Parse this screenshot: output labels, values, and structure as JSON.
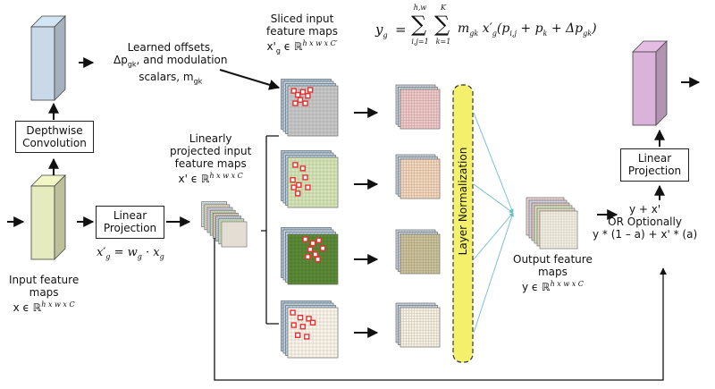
{
  "offsets_label": {
    "line1": "Learned offsets,",
    "line2_prefix": "Δp",
    "line2_sub": "gk",
    "line2_suffix": ", and modulation",
    "line3_prefix": "scalars, m",
    "line3_sub": "gk"
  },
  "depthwise_conv": {
    "line1": "Depthwise",
    "line2": "Convolution"
  },
  "linear_projection_left": {
    "line1": "Linear",
    "line2": "Projection"
  },
  "linear_projection_right": {
    "line1": "Linear",
    "line2": "Projection"
  },
  "projection_formula": {
    "lhs": "x′",
    "lhs_sub": "g",
    "rhs": "= w",
    "rhs_sub": "g",
    "rhs_tail": " · x",
    "tail_sub": "g"
  },
  "input_feature_maps": {
    "line1": "Input feature",
    "line2": "maps",
    "symbol": "x ϵ ℝ",
    "dims": "h x w x C"
  },
  "linearly_projected": {
    "line1": "Linearly",
    "line2": "projected input",
    "line3": "feature maps",
    "symbol": "x' ϵ ℝ",
    "dims": "h x w x C"
  },
  "sliced_maps": {
    "line1": "Sliced input",
    "line2": "feature maps",
    "symbol": "x'",
    "symbol_sub": "g",
    "symbol_tail": " ϵ ℝ",
    "dims": "h x w x C′"
  },
  "equation": {
    "lhs": "y",
    "lhs_sub": "g",
    "eq": "=",
    "sum1_top": "h,w",
    "sum1_bottom": "i,j=1",
    "sum2_top": "K",
    "sum2_bottom": "k=1",
    "body": "m",
    "body_sub": "gk",
    "body2": " x′",
    "body2_sub": "g",
    "body3": "(p",
    "body3_sub": "i,j",
    "body4": " + p",
    "body4_sub": "k",
    "body5": " + Δp",
    "body5_sub": "gk",
    "body6": ")"
  },
  "layer_norm": "Layer Normalization",
  "output_feature_maps": {
    "line1": "Output feature",
    "line2": "maps",
    "symbol": "y ϵ ℝ",
    "dims": "h x w x C"
  },
  "residual": {
    "line1": "y + x'",
    "line2": "OR Optionally",
    "line3": "y * (1 – a) + x' * (a)"
  },
  "colors": {
    "input_block": "#e6ebbd",
    "offset_block": "#c9d9e8",
    "output_block": "#d9b3d9",
    "grid_gray": "#c9c9c9",
    "grid_lightgreen": "#d7e6b8",
    "grid_darkgreen": "#5b8a36",
    "grid_cream": "#fbf5ea",
    "out_pink": "#f1c9c9",
    "out_peach": "#f6d8bd",
    "out_khaki": "#cdc39b",
    "out_ivory": "#f8f2e3",
    "layer_norm_fill": "#f4f06c",
    "dot_red": "#e83030",
    "arrow_teal": "#6fbcc9"
  }
}
